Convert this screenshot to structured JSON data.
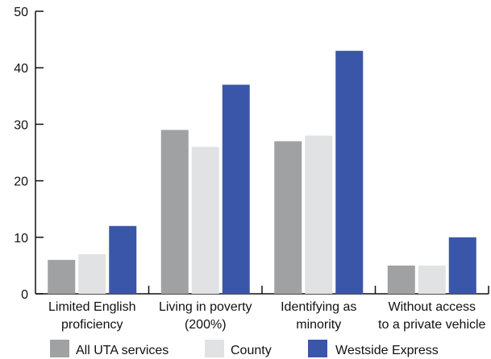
{
  "chart_data": {
    "type": "bar",
    "categories": [
      [
        "Limited English",
        "proficiency"
      ],
      [
        "Living in poverty",
        "(200%)"
      ],
      [
        "Identifying as",
        "minority"
      ],
      [
        "Without access",
        "to a private vehicle"
      ]
    ],
    "series": [
      {
        "name": "All UTA services",
        "color": "#a0a1a3",
        "values": [
          6,
          29,
          27,
          5
        ]
      },
      {
        "name": "County",
        "color": "#e1e2e4",
        "values": [
          7,
          26,
          28,
          5
        ]
      },
      {
        "name": "Westside Express",
        "color": "#3a56a8",
        "values": [
          12,
          37,
          43,
          10
        ]
      }
    ],
    "ylim": [
      0,
      50
    ],
    "yticks": [
      0,
      10,
      20,
      30,
      40,
      50
    ],
    "grid": false,
    "legend": "bottom"
  }
}
